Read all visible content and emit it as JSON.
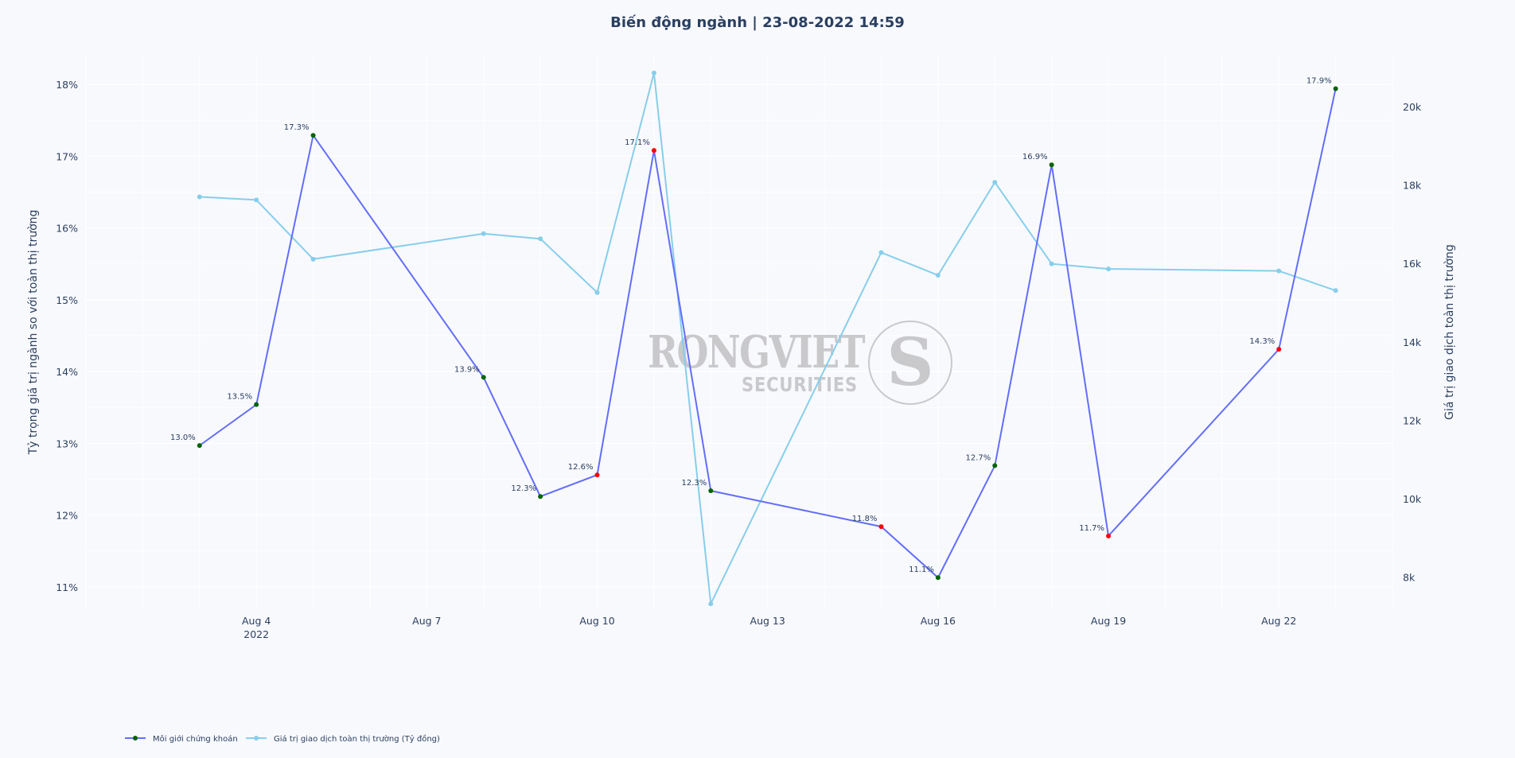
{
  "title": "Biến động ngành | 23-08-2022 14:59",
  "colors": {
    "background": "#f8f9fd",
    "grid": "#ffffff",
    "text": "#2a3f5f",
    "series_pct": "#636efa",
    "series_val": "#87ceeb",
    "marker_up": "#006400",
    "marker_down": "#ff0000",
    "watermark": "#c9c9cc"
  },
  "watermark": {
    "brand": "RONGVIET",
    "sub": "SECURITIES",
    "emblem": "S"
  },
  "chart_data": {
    "type": "line",
    "title": "Biến động ngành | 23-08-2022 14:59",
    "x": [
      "2022-08-03",
      "2022-08-04",
      "2022-08-05",
      "2022-08-08",
      "2022-08-09",
      "2022-08-10",
      "2022-08-11",
      "2022-08-12",
      "2022-08-15",
      "2022-08-16",
      "2022-08-17",
      "2022-08-18",
      "2022-08-19",
      "2022-08-22",
      "2022-08-23"
    ],
    "x_ticks": [
      {
        "date": "2022-08-04",
        "label": "Aug 4",
        "sub": "2022"
      },
      {
        "date": "2022-08-07",
        "label": "Aug 7",
        "sub": ""
      },
      {
        "date": "2022-08-10",
        "label": "Aug 10",
        "sub": ""
      },
      {
        "date": "2022-08-13",
        "label": "Aug 13",
        "sub": ""
      },
      {
        "date": "2022-08-16",
        "label": "Aug 16",
        "sub": ""
      },
      {
        "date": "2022-08-19",
        "label": "Aug 19",
        "sub": ""
      },
      {
        "date": "2022-08-22",
        "label": "Aug 22",
        "sub": ""
      }
    ],
    "xlim": [
      "2022-08-01",
      "2022-08-24"
    ],
    "y_left": {
      "title": "Tỷ trọng giá trị ngành so với toàn thị trường",
      "range": [
        10.7,
        18.4
      ],
      "ticks": [
        11,
        12,
        13,
        14,
        15,
        16,
        17,
        18
      ],
      "tick_suffix": "%"
    },
    "y_right": {
      "title": "Giá trị giao dịch toàn thị trường",
      "range": [
        7200,
        21300
      ],
      "ticks": [
        8000,
        10000,
        12000,
        14000,
        16000,
        18000,
        20000
      ],
      "tick_labels": [
        "8k",
        "10k",
        "12k",
        "14k",
        "16k",
        "18k",
        "20k"
      ]
    },
    "series": [
      {
        "name": "Môi giới chứng khoán",
        "axis": "left",
        "values": [
          13.0,
          13.5,
          17.3,
          13.9,
          12.3,
          12.6,
          17.1,
          12.3,
          11.8,
          11.1,
          12.7,
          16.9,
          11.7,
          14.3,
          17.9
        ],
        "plot_values": [
          12.97,
          13.54,
          17.29,
          13.92,
          12.26,
          12.56,
          17.08,
          12.34,
          11.84,
          11.13,
          12.69,
          16.88,
          11.71,
          14.31,
          17.94
        ],
        "labels": [
          "13.0%",
          "13.5%",
          "17.3%",
          "13.9%",
          "12.3%",
          "12.6%",
          "17.1%",
          "12.3%",
          "11.8%",
          "11.1%",
          "12.7%",
          "16.9%",
          "11.7%",
          "14.3%",
          "17.9%"
        ],
        "marker_colors": [
          "#006400",
          "#006400",
          "#006400",
          "#006400",
          "#006400",
          "#ff0000",
          "#ff0000",
          "#006400",
          "#ff0000",
          "#006400",
          "#006400",
          "#006400",
          "#ff0000",
          "#ff0000",
          "#006400"
        ]
      },
      {
        "name": "Giá trị giao dịch toàn thị trường (Tỷ đồng)",
        "axis": "right",
        "values": [
          17700,
          17620,
          16110,
          16760,
          16630,
          15260,
          20860,
          7320,
          16280,
          15700,
          18070,
          15990,
          15860,
          15810,
          15310
        ]
      }
    ],
    "grid": true,
    "legend_position": "bottom-left"
  }
}
